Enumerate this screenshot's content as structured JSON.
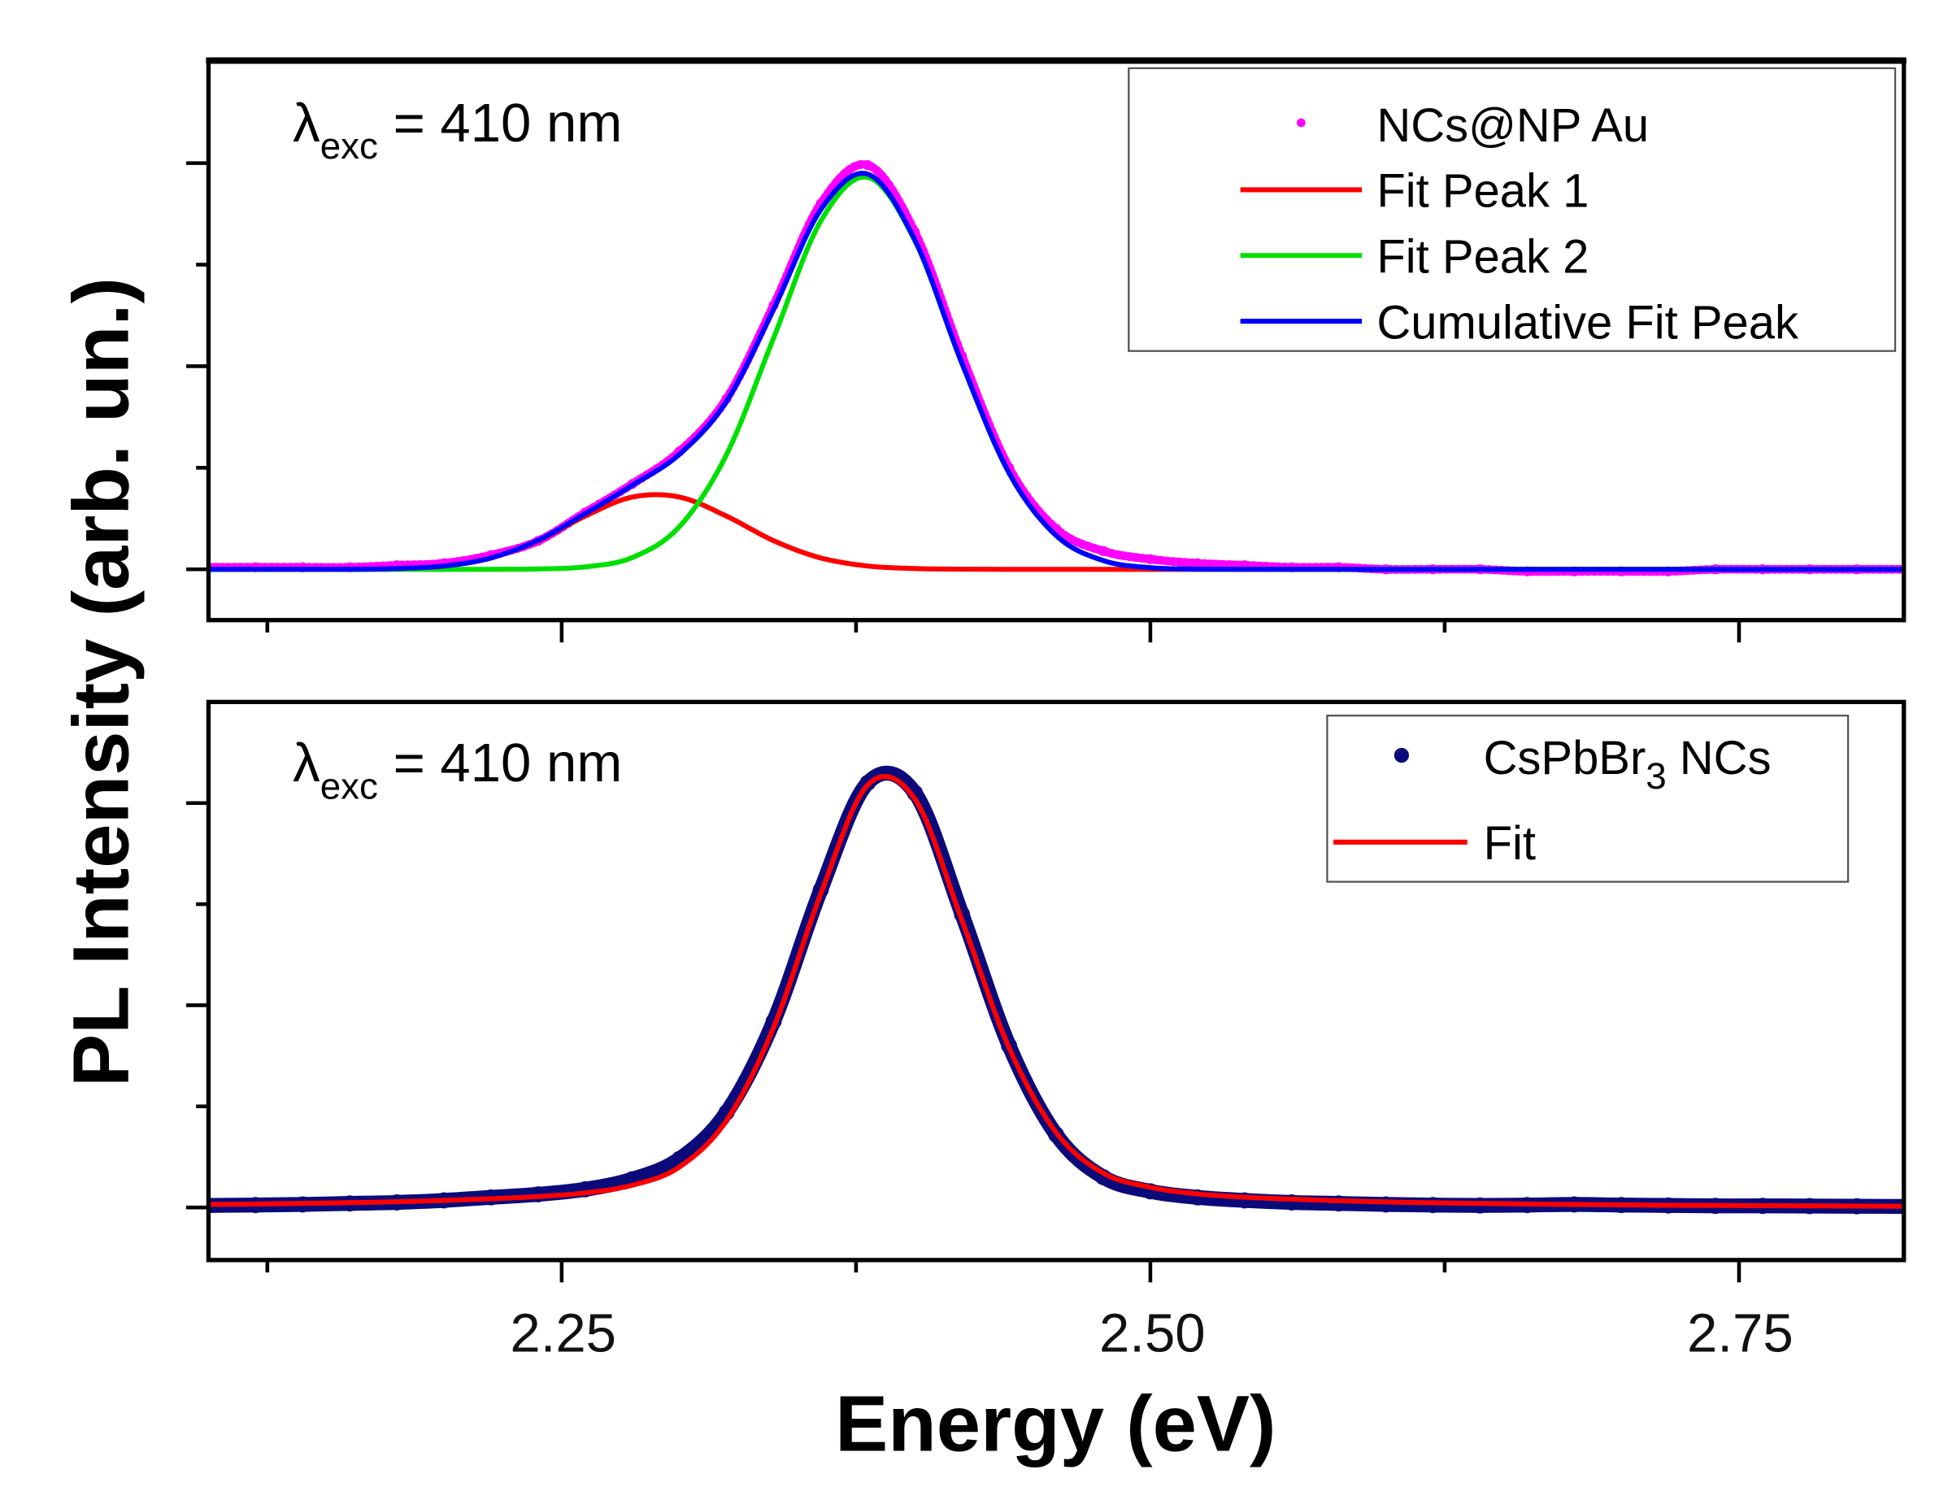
{
  "figure": {
    "ylabel": "PL Intensity (arb. un.)",
    "xlabel": "Energy (eV)",
    "x_tick_labels": [
      "2.25",
      "2.50",
      "2.75"
    ]
  },
  "chart_data": [
    {
      "type": "line",
      "panel": "top",
      "annotation": {
        "symbol": "λ",
        "subscript": "exc",
        "text": " = 410 nm"
      },
      "xlabel": "Energy (eV)",
      "ylabel": "PL Intensity (arb. un.)",
      "xlim": [
        2.1,
        2.82
      ],
      "ylim": [
        -0.25,
        2.51
      ],
      "x_major_ticks": [
        2.25,
        2.5,
        2.75
      ],
      "x_minor_ticks": [
        2.125,
        2.375,
        2.625
      ],
      "y_major_ticks": [
        0,
        1,
        2
      ],
      "y_minor_ticks": [
        0.5,
        1.5
      ],
      "grid": false,
      "legend_position": "top-right",
      "x": [
        2.1,
        2.12,
        2.14,
        2.16,
        2.18,
        2.2,
        2.22,
        2.24,
        2.26,
        2.28,
        2.3,
        2.32,
        2.34,
        2.36,
        2.38,
        2.4,
        2.42,
        2.44,
        2.46,
        2.48,
        2.5,
        2.52,
        2.54,
        2.56,
        2.58,
        2.6,
        2.62,
        2.64,
        2.66,
        2.68,
        2.7,
        2.72,
        2.74,
        2.76,
        2.78,
        2.8,
        2.82
      ],
      "series": [
        {
          "name": "NCs@NP Au",
          "style": "markers",
          "color": "#ff00ff",
          "values": [
            0.01,
            0.01,
            0.01,
            0.01,
            0.02,
            0.03,
            0.07,
            0.14,
            0.28,
            0.42,
            0.58,
            0.84,
            1.3,
            1.8,
            1.99,
            1.66,
            1.05,
            0.5,
            0.2,
            0.09,
            0.05,
            0.03,
            0.02,
            0.01,
            0.01,
            0,
            0,
            0,
            -0.01,
            -0.01,
            -0.01,
            -0.01,
            0,
            0,
            0,
            0,
            0
          ]
        },
        {
          "name": "Fit Peak 1",
          "style": "line",
          "color": "#ff0000",
          "values": [
            0,
            0,
            0,
            0,
            0.004,
            0.016,
            0.056,
            0.141,
            0.262,
            0.356,
            0.356,
            0.262,
            0.141,
            0.056,
            0.016,
            0.004,
            0.001,
            0,
            0,
            0,
            0,
            0,
            0,
            0,
            0,
            0,
            0,
            0,
            0,
            0,
            0,
            0,
            0,
            0,
            0,
            0,
            0
          ]
        },
        {
          "name": "Fit Peak 2",
          "style": "line",
          "color": "#00e000",
          "values": [
            0,
            0,
            0,
            0,
            0,
            0,
            0,
            0.002,
            0.012,
            0.058,
            0.21,
            0.565,
            1.139,
            1.714,
            1.93,
            1.617,
            1.013,
            0.474,
            0.166,
            0.043,
            0.008,
            0.001,
            0,
            0,
            0,
            0,
            0,
            0,
            0,
            0,
            0,
            0,
            0,
            0,
            0,
            0,
            0
          ]
        },
        {
          "name": "Cumulative Fit Peak",
          "style": "line",
          "color": "#0000ff",
          "values": [
            0,
            0,
            0,
            0,
            0.004,
            0.016,
            0.056,
            0.143,
            0.274,
            0.414,
            0.566,
            0.827,
            1.28,
            1.77,
            1.946,
            1.621,
            1.014,
            0.474,
            0.166,
            0.043,
            0.008,
            0.001,
            0,
            0,
            0,
            0,
            0,
            0,
            0,
            0,
            0,
            0,
            0,
            0,
            0,
            0,
            0
          ]
        }
      ]
    },
    {
      "type": "line",
      "panel": "bottom",
      "annotation": {
        "symbol": "λ",
        "subscript": "exc",
        "text": " = 410 nm"
      },
      "xlabel": "Energy (eV)",
      "ylabel": "PL Intensity (arb. un.)",
      "xlim": [
        2.1,
        2.82
      ],
      "ylim": [
        -0.26,
        2.5
      ],
      "x_major_ticks": [
        2.25,
        2.5,
        2.75
      ],
      "x_minor_ticks": [
        2.125,
        2.375,
        2.625
      ],
      "y_major_ticks": [
        0,
        1,
        2
      ],
      "y_minor_ticks": [
        0.5,
        1.5
      ],
      "grid": false,
      "legend_position": "top-right",
      "x": [
        2.1,
        2.12,
        2.14,
        2.16,
        2.18,
        2.2,
        2.22,
        2.24,
        2.26,
        2.28,
        2.3,
        2.32,
        2.34,
        2.36,
        2.38,
        2.4,
        2.42,
        2.44,
        2.46,
        2.48,
        2.5,
        2.52,
        2.54,
        2.56,
        2.58,
        2.6,
        2.62,
        2.64,
        2.66,
        2.68,
        2.7,
        2.72,
        2.74,
        2.76,
        2.78,
        2.8,
        2.82
      ],
      "series": [
        {
          "name": "CsPbBr3 NCs",
          "name_main": "CsPbBr",
          "name_sub": "3",
          "name_tail": " NCs",
          "style": "markers",
          "color": "#0a0a7a",
          "values": [
            0.01,
            0.012,
            0.015,
            0.02,
            0.025,
            0.035,
            0.05,
            0.065,
            0.09,
            0.14,
            0.24,
            0.47,
            0.92,
            1.57,
            2.1,
            2.05,
            1.45,
            0.8,
            0.36,
            0.15,
            0.08,
            0.05,
            0.035,
            0.025,
            0.02,
            0.015,
            0.012,
            0.01,
            0.012,
            0.015,
            0.012,
            0.01,
            0.008,
            0.008,
            0.007,
            0.006,
            0.005
          ]
        },
        {
          "name": "Fit",
          "style": "line",
          "color": "#ff0000",
          "values": [
            0.015,
            0.017,
            0.02,
            0.024,
            0.028,
            0.035,
            0.043,
            0.054,
            0.072,
            0.11,
            0.2,
            0.43,
            0.89,
            1.55,
            2.09,
            2.02,
            1.42,
            0.79,
            0.37,
            0.17,
            0.1,
            0.067,
            0.051,
            0.041,
            0.033,
            0.027,
            0.023,
            0.02,
            0.017,
            0.015,
            0.013,
            0.011,
            0.01,
            0.009,
            0.008,
            0.007,
            0.006
          ]
        }
      ]
    }
  ]
}
